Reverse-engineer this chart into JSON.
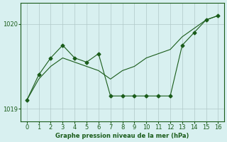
{
  "x": [
    0,
    1,
    2,
    3,
    4,
    5,
    6,
    7,
    8,
    9,
    10,
    11,
    12,
    13,
    14,
    15,
    16
  ],
  "y_data": [
    1019.1,
    1019.4,
    1019.6,
    1019.75,
    1019.6,
    1019.55,
    1019.65,
    1019.15,
    1019.15,
    1019.15,
    1019.15,
    1019.15,
    1019.15,
    1019.75,
    1019.9,
    1020.05,
    1020.1
  ],
  "y_smooth": [
    1019.1,
    1019.35,
    1019.5,
    1019.6,
    1019.55,
    1019.5,
    1019.45,
    1019.35,
    1019.45,
    1019.5,
    1019.6,
    1019.65,
    1019.7,
    1019.85,
    1019.95,
    1020.05,
    1020.1
  ],
  "line_color": "#1a5c1a",
  "bg_color": "#d8f0f0",
  "grid_color": "#b0c8c8",
  "xlabel": "Graphe pression niveau de la mer (hPa)",
  "ylim": [
    1018.85,
    1020.25
  ],
  "yticks": [
    1019,
    1020
  ],
  "xticks": [
    0,
    1,
    2,
    3,
    4,
    5,
    6,
    7,
    8,
    9,
    10,
    11,
    12,
    13,
    14,
    15,
    16
  ],
  "marker": "D",
  "marker_size": 2.5
}
